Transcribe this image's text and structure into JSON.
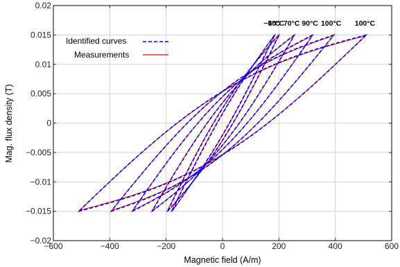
{
  "chart_data": {
    "type": "line",
    "title": "",
    "xlabel": "Magnetic field (A/m)",
    "ylabel": "Mag. flux density (T)",
    "xlim": [
      -600,
      600
    ],
    "ylim": [
      -0.02,
      0.02
    ],
    "x_ticks": [
      -600,
      -400,
      -200,
      0,
      200,
      400,
      600
    ],
    "x_tick_labels": [
      "−600",
      "−400",
      "−200",
      "0",
      "200",
      "400",
      "600"
    ],
    "y_ticks": [
      -0.02,
      -0.015,
      -0.01,
      -0.005,
      0,
      0.005,
      0.01,
      0.015,
      0.02
    ],
    "y_tick_labels": [
      "−0.02",
      "−0.015",
      "−0.01",
      "−0.005",
      "0",
      "0.005",
      "0.01",
      "0.015",
      "0.02"
    ],
    "grid": true,
    "legend_position": "top-left",
    "legend": [
      {
        "label": "Identified curves",
        "color": "#0000ee",
        "style": "dashed"
      },
      {
        "label": "Measurements",
        "color": "#ee0000",
        "style": "solid"
      }
    ],
    "annotations": [
      "−5°C",
      "40°C",
      "70°C",
      "90°C",
      "100°C",
      "100°C"
    ],
    "loops": [
      {
        "temperature": "−5°C",
        "h_max": 185,
        "h_min": -180,
        "coercive_field": 20,
        "b_max": 0.015,
        "b_min": -0.015
      },
      {
        "temperature": "40°C",
        "h_max": 200,
        "h_min": -195,
        "coercive_field": 30,
        "b_max": 0.015,
        "b_min": -0.015
      },
      {
        "temperature": "70°C",
        "h_max": 255,
        "h_min": -250,
        "coercive_field": 40,
        "b_max": 0.015,
        "b_min": -0.015
      },
      {
        "temperature": "90°C",
        "h_max": 320,
        "h_min": -320,
        "coercive_field": 50,
        "b_max": 0.015,
        "b_min": -0.015
      },
      {
        "temperature": "100°C",
        "h_max": 395,
        "h_min": -395,
        "coercive_field": 60,
        "b_max": 0.015,
        "b_min": -0.015
      },
      {
        "temperature": "100°C",
        "h_max": 510,
        "h_min": -510,
        "coercive_field": 60,
        "b_max": 0.015,
        "b_min": -0.015
      }
    ],
    "series": [
      {
        "name": "Identified curves",
        "color": "#0000ee",
        "style": "dashed"
      },
      {
        "name": "Measurements",
        "color": "#ee0000",
        "style": "solid"
      }
    ]
  }
}
